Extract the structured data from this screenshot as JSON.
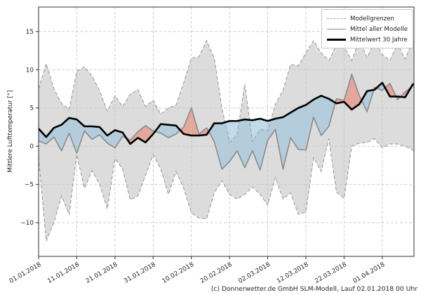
{
  "chart_data": {
    "type": "line",
    "title": "",
    "ylabel": "Mittlere Lufttemperatur [°]",
    "caption": "(c) Donnerwetter.de GmbH SLM-Modell, Lauf 02.01.2018 00 Uhr",
    "x_unit": "days since 01.01.2018",
    "xlim": [
      0,
      98.3
    ],
    "ylim": [
      -14.4,
      18.2
    ],
    "grid": true,
    "legend_position": "upper right",
    "x_ticks": [
      {
        "day": 0,
        "label": "01.01.2018"
      },
      {
        "day": 10,
        "label": "11.01.2018"
      },
      {
        "day": 20,
        "label": "21.01.2018"
      },
      {
        "day": 30,
        "label": "31.01.2018"
      },
      {
        "day": 40,
        "label": "10.02.2018"
      },
      {
        "day": 50,
        "label": "20.02.2018"
      },
      {
        "day": 60,
        "label": "02.03.2018"
      },
      {
        "day": 70,
        "label": "12.03.2018"
      },
      {
        "day": 80,
        "label": "22.03.2018"
      },
      {
        "day": 90,
        "label": "01.04.2018"
      }
    ],
    "y_ticks": [
      {
        "value": 15,
        "label": "15"
      },
      {
        "value": 10,
        "label": "10"
      },
      {
        "value": 5,
        "label": "5"
      },
      {
        "value": 0,
        "label": "0"
      },
      {
        "value": -5,
        "label": "−5"
      },
      {
        "value": -10,
        "label": "−10"
      }
    ],
    "days": [
      0,
      2,
      4,
      6,
      8,
      10,
      12,
      14,
      16,
      18,
      20,
      22,
      24,
      26,
      28,
      30,
      32,
      34,
      36,
      38,
      40,
      42,
      44,
      46,
      48,
      50,
      52,
      54,
      56,
      58,
      60,
      62,
      64,
      66,
      68,
      70,
      72,
      74,
      76,
      78,
      80,
      82,
      84,
      86,
      88,
      90,
      92,
      94,
      96,
      98
    ],
    "series": [
      {
        "role": "upper_bound",
        "name": "Modellgrenzen",
        "line": "dashed-gray",
        "values": [
          7.5,
          10.8,
          7.5,
          5.6,
          4.8,
          9.8,
          10.4,
          9.2,
          7.2,
          4.6,
          6.6,
          5.2,
          6.8,
          7.4,
          5.2,
          6.0,
          4.2,
          5.0,
          5.4,
          8.3,
          11.5,
          11.7,
          13.8,
          11.5,
          5.0,
          0.5,
          1.5,
          8.1,
          0.6,
          2.2,
          2.0,
          5.5,
          7.3,
          10.7,
          10.5,
          12.2,
          13.8,
          12.2,
          11.2,
          13.2,
          13.0,
          11.2,
          13.9,
          11.6,
          13.6,
          12.0,
          11.2,
          13.4,
          11.4,
          13.8
        ]
      },
      {
        "role": "lower_bound",
        "name": "Modellgrenzen",
        "line": "dashed-gray",
        "values": [
          -1.4,
          -12.4,
          -10.0,
          -6.5,
          -8.9,
          -1.1,
          -5.5,
          -3.2,
          -5.0,
          -8.2,
          -1.6,
          -3.0,
          -7.0,
          -6.5,
          -3.8,
          -1.1,
          -3.0,
          -6.3,
          -3.3,
          -5.5,
          -8.7,
          -9.4,
          -9.5,
          -6.1,
          -4.5,
          -6.3,
          -6.9,
          -6.3,
          -5.3,
          -6.3,
          -7.7,
          -4.1,
          -6.9,
          -6.1,
          -8.9,
          -8.6,
          -1.5,
          -3.3,
          1.0,
          -6.0,
          -6.8,
          0.0,
          0.4,
          0.5,
          1.0,
          -0.2,
          0.3,
          0.3,
          0.0,
          -0.5
        ]
      },
      {
        "role": "model_mean",
        "name": "Mittel aller Modelle",
        "line": "solid-gray",
        "values": [
          0.7,
          0.3,
          1.2,
          -0.6,
          1.7,
          -0.9,
          2.0,
          0.9,
          1.5,
          0.4,
          -0.2,
          1.3,
          0.8,
          1.9,
          2.7,
          2.0,
          1.7,
          1.1,
          1.6,
          2.5,
          5.0,
          1.6,
          2.4,
          0.6,
          -3.0,
          -2.0,
          -0.6,
          -2.8,
          -0.6,
          -3.1,
          0.8,
          2.2,
          -3.0,
          1.1,
          -0.4,
          -0.5,
          3.8,
          1.4,
          2.6,
          6.2,
          6.0,
          9.4,
          6.6,
          4.5,
          7.7,
          7.3,
          8.2,
          6.1,
          7.1,
          7.9
        ]
      },
      {
        "role": "climate_mean_30y",
        "name": "Mittelwert 30 Jahre",
        "line": "solid-black-thick",
        "values": [
          2.3,
          1.2,
          2.4,
          2.8,
          3.7,
          3.5,
          2.6,
          2.6,
          2.5,
          1.4,
          2.1,
          1.8,
          0.3,
          1.1,
          0.5,
          1.6,
          2.9,
          2.8,
          2.7,
          1.6,
          1.4,
          1.4,
          1.5,
          3.0,
          3.0,
          3.3,
          3.3,
          3.5,
          3.4,
          3.6,
          3.3,
          3.6,
          3.8,
          4.4,
          5.0,
          5.4,
          6.1,
          6.6,
          6.2,
          5.6,
          5.8,
          4.8,
          5.5,
          7.2,
          7.4,
          8.3,
          6.5,
          6.5,
          6.4,
          8.1
        ]
      }
    ],
    "legend_items": [
      {
        "label": "Modellgrenzen",
        "style": "dashed-gray"
      },
      {
        "label": "Mittel aller Modelle",
        "style": "solid-gray"
      },
      {
        "label": "Mittelwert 30 Jahre",
        "style": "solid-black-thick"
      }
    ],
    "colors": {
      "envelope": "#dcdcdc",
      "colder": "#99c3de",
      "warmer": "#e98473",
      "fill_opacity": 0.6,
      "grid": "#c2c2c2",
      "bound_line": "#9b9b9b",
      "model_mean_line": "#8a8a8a",
      "climate_mean_line": "#000000",
      "frame": "#2e2e2e",
      "text": "#1f1f1f"
    }
  }
}
